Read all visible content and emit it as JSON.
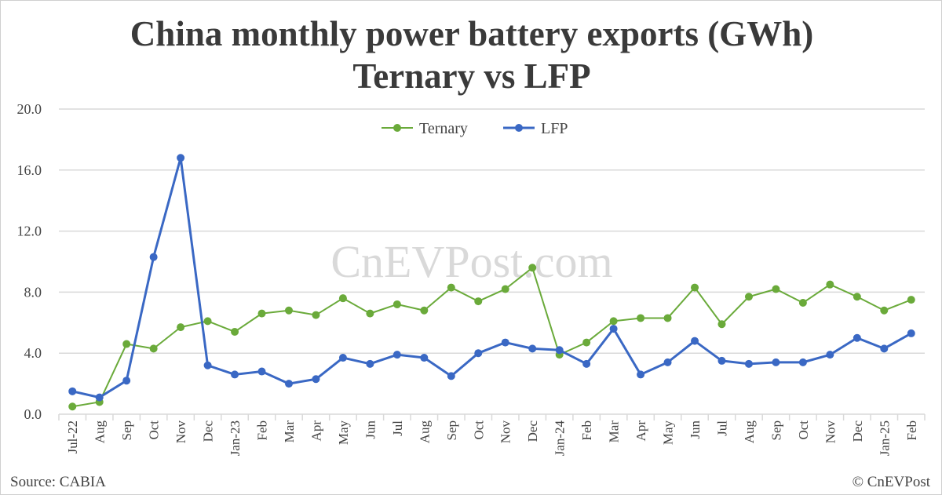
{
  "chart_data": {
    "type": "line",
    "title": "China monthly power battery exports (GWh)",
    "subtitle": "Ternary vs LFP",
    "xlabel": "",
    "ylabel": "",
    "ylim": [
      0,
      20
    ],
    "yticks": [
      "0.0",
      "4.0",
      "8.0",
      "12.0",
      "16.0",
      "20.0"
    ],
    "grid": true,
    "legend": "top-center",
    "categories": [
      "Jul-22",
      "Aug",
      "Sep",
      "Oct",
      "Nov",
      "Dec",
      "Jan-23",
      "Feb",
      "Mar",
      "Apr",
      "May",
      "Jun",
      "Jul",
      "Aug",
      "Sep",
      "Oct",
      "Nov",
      "Dec",
      "Jan-24",
      "Feb",
      "Mar",
      "Apr",
      "May",
      "Jun",
      "Jul",
      "Aug",
      "Sep",
      "Oct",
      "Nov",
      "Dec",
      "Jan-25",
      "Feb"
    ],
    "series": [
      {
        "name": "Ternary",
        "color": "#6aaa3a",
        "values": [
          0.5,
          0.8,
          4.6,
          4.3,
          5.7,
          6.1,
          5.4,
          6.6,
          6.8,
          6.5,
          7.6,
          6.6,
          7.2,
          6.8,
          8.3,
          7.4,
          8.2,
          9.6,
          3.9,
          4.7,
          6.1,
          6.3,
          6.3,
          8.3,
          5.9,
          7.7,
          8.2,
          7.3,
          8.5,
          7.7,
          6.8,
          7.5
        ]
      },
      {
        "name": "LFP",
        "color": "#3a68c4",
        "values": [
          1.5,
          1.1,
          2.2,
          10.3,
          16.8,
          3.2,
          2.6,
          2.8,
          2.0,
          2.3,
          3.7,
          3.3,
          3.9,
          3.7,
          2.5,
          4.0,
          4.7,
          4.3,
          4.2,
          3.3,
          5.6,
          2.6,
          3.4,
          4.8,
          3.5,
          3.3,
          3.4,
          3.4,
          3.9,
          5.0,
          4.3,
          5.3
        ]
      }
    ]
  },
  "watermark": "CnEVPost.com",
  "source": "Source: CABIA",
  "copyright": "© CnEVPost"
}
